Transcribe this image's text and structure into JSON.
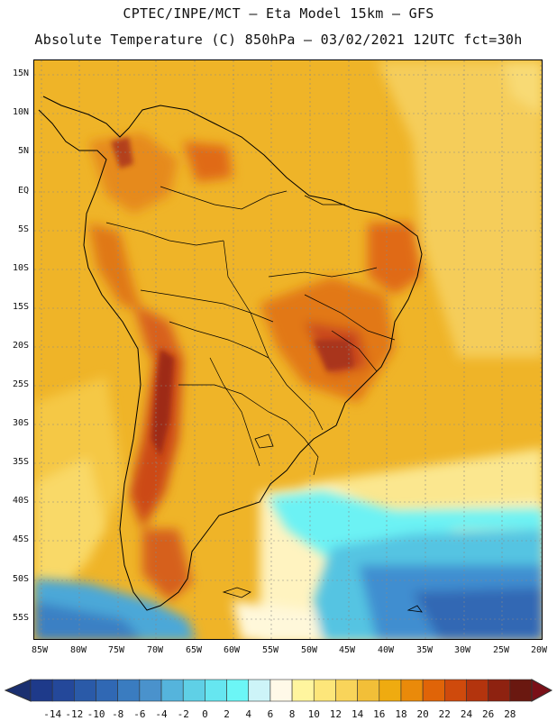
{
  "header": {
    "line1": "CPTEC/INPE/MCT –  Eta Model 15km – GFS",
    "line2": "Absolute Temperature (C) 850hPa – 03/02/2021 12UTC fct=30h"
  },
  "axes": {
    "lat_labels": [
      "15N",
      "10N",
      "5N",
      "EQ",
      "5S",
      "10S",
      "15S",
      "20S",
      "25S",
      "30S",
      "35S",
      "40S",
      "45S",
      "50S",
      "55S"
    ],
    "lon_labels": [
      "85W",
      "80W",
      "75W",
      "70W",
      "65W",
      "60W",
      "55W",
      "50W",
      "45W",
      "40W",
      "35W",
      "30W",
      "25W",
      "20W"
    ]
  },
  "colorbar": {
    "tick_labels": [
      "-14",
      "-12",
      "-10",
      "-8",
      "-6",
      "-4",
      "-2",
      "0",
      "2",
      "4",
      "6",
      "8",
      "10",
      "12",
      "14",
      "16",
      "18",
      "20",
      "22",
      "24",
      "26",
      "28"
    ],
    "colors": [
      "#1e3a8a",
      "#24489a",
      "#2a5aa8",
      "#3068b4",
      "#3a7cc0",
      "#4a92cc",
      "#55b4dc",
      "#5fd0e6",
      "#66e6f0",
      "#6cf6f6",
      "#cdf4f8",
      "#fff9e8",
      "#fff59e",
      "#fde67a",
      "#f9d45a",
      "#f2bf38",
      "#efab10",
      "#ea8a0a",
      "#e06408",
      "#cf4a0c",
      "#b3340e",
      "#8e2210",
      "#6a1810"
    ],
    "under_color": "#1a2f70",
    "over_color": "#7a1018"
  }
}
